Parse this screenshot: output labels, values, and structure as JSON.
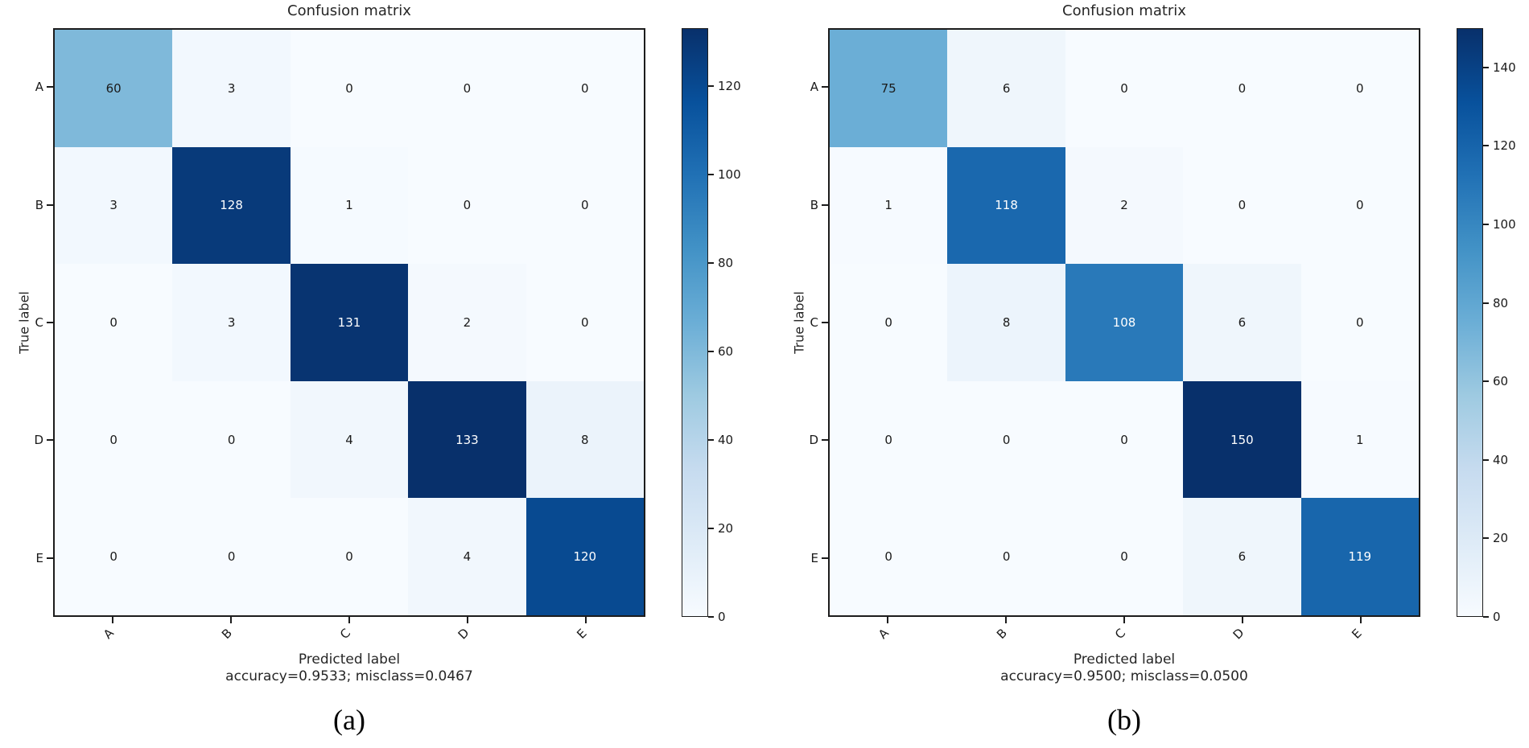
{
  "page": {
    "background": "#ffffff",
    "text_color": "#262626"
  },
  "chart_data": [
    {
      "type": "heatmap",
      "title": "Confusion matrix",
      "xlabel": "Predicted label",
      "ylabel": "True label",
      "caption": "(a)",
      "annotation": "accuracy=0.9533; misclass=0.0467",
      "x_categories": [
        "A",
        "B",
        "C",
        "D",
        "E"
      ],
      "y_categories": [
        "A",
        "B",
        "C",
        "D",
        "E"
      ],
      "matrix": [
        [
          60,
          3,
          0,
          0,
          0
        ],
        [
          3,
          128,
          1,
          0,
          0
        ],
        [
          0,
          3,
          131,
          2,
          0
        ],
        [
          0,
          0,
          4,
          133,
          8
        ],
        [
          0,
          0,
          0,
          4,
          120
        ]
      ],
      "vmin": 0,
      "vmax": 133,
      "colorbar_ticks": [
        0,
        20,
        40,
        60,
        80,
        100,
        120
      ],
      "colormap": "Blues",
      "legend_position": "right-colorbar",
      "grid": false,
      "x_tick_rotation_deg": 45
    },
    {
      "type": "heatmap",
      "title": "Confusion matrix",
      "xlabel": "Predicted label",
      "ylabel": "True label",
      "caption": "(b)",
      "annotation": "accuracy=0.9500; misclass=0.0500",
      "x_categories": [
        "A",
        "B",
        "C",
        "D",
        "E"
      ],
      "y_categories": [
        "A",
        "B",
        "C",
        "D",
        "E"
      ],
      "matrix": [
        [
          75,
          6,
          0,
          0,
          0
        ],
        [
          1,
          118,
          2,
          0,
          0
        ],
        [
          0,
          8,
          108,
          6,
          0
        ],
        [
          0,
          0,
          0,
          150,
          1
        ],
        [
          0,
          0,
          0,
          6,
          119
        ]
      ],
      "vmin": 0,
      "vmax": 150,
      "colorbar_ticks": [
        0,
        20,
        40,
        60,
        80,
        100,
        120,
        140
      ],
      "colormap": "Blues",
      "legend_position": "right-colorbar",
      "grid": false,
      "x_tick_rotation_deg": 45
    }
  ],
  "style": {
    "colormap_stops": [
      [
        0.0,
        "#f7fbff"
      ],
      [
        0.125,
        "#deebf7"
      ],
      [
        0.25,
        "#c6dbef"
      ],
      [
        0.375,
        "#9ecae1"
      ],
      [
        0.5,
        "#6baed6"
      ],
      [
        0.625,
        "#4292c6"
      ],
      [
        0.75,
        "#2171b5"
      ],
      [
        0.875,
        "#08519c"
      ],
      [
        1.0,
        "#08306b"
      ]
    ],
    "axis_color": "#1c1c1c",
    "cell_text_dark": "#1a1a1a",
    "cell_text_light": "#ffffff"
  }
}
